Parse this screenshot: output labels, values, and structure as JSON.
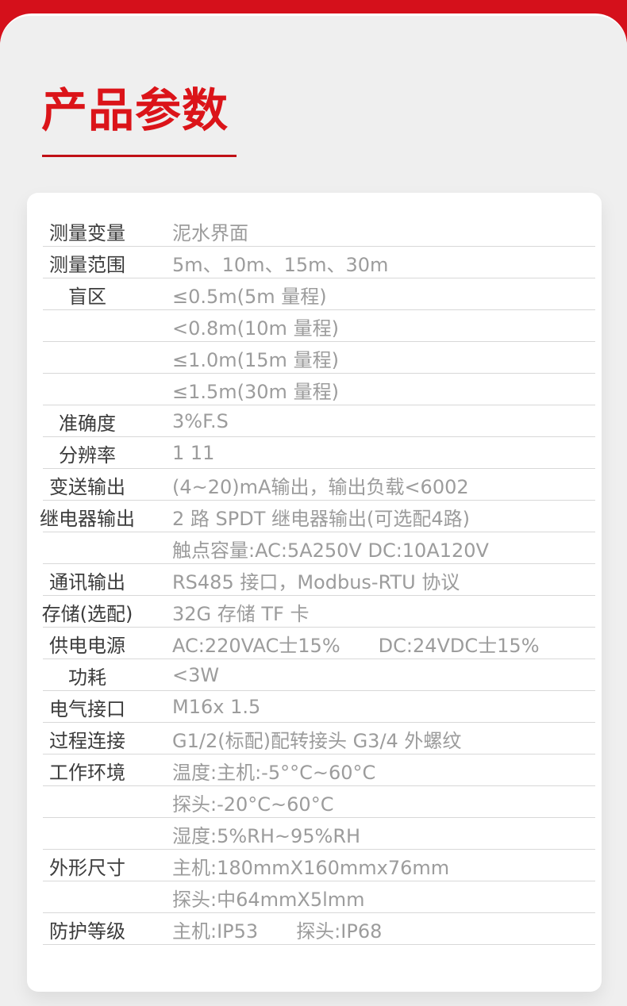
{
  "page": {
    "title": "产品参数"
  },
  "colors": {
    "top_bar_red": "#d5101b",
    "title_red": "#db1419",
    "underline_red": "#c01016",
    "sheet_gray": "#efefef",
    "card_white": "#ffffff",
    "separator_gray": "#d8d8d8",
    "label_text": "#3c3c3c",
    "value_text": "#9c9c9c"
  },
  "table": {
    "rows": [
      {
        "label": "测量变量",
        "value": "泥水界面"
      },
      {
        "label": "测量范围",
        "value": "5m、10m、15m、30m"
      },
      {
        "label": "盲区",
        "value": "≤0.5m(5m 量程)"
      },
      {
        "label": "",
        "value": "<0.8m(10m 量程)"
      },
      {
        "label": "",
        "value": "≤1.0m(15m 量程)"
      },
      {
        "label": "",
        "value": "≤1.5m(30m 量程)"
      },
      {
        "label": "准确度",
        "value": "3%F.S"
      },
      {
        "label": "分辨率",
        "value": "1 11"
      },
      {
        "label": "变送输出",
        "value": "(4~20)mA输出，输出负载<6002"
      },
      {
        "label": "继电器输出",
        "value": "2 路 SPDT 继电器输出(可选配4路)"
      },
      {
        "label": "",
        "value": "触点容量:AC:5A250V DC:10A120V"
      },
      {
        "label": "通讯输出",
        "value": "RS485 接口，Modbus-RTU 协议"
      },
      {
        "label": "存储(选配)",
        "value": "32G 存储 TF 卡"
      },
      {
        "label": "供电电源",
        "value": "AC:220VAC士15%",
        "value2": "DC:24VDC士15%"
      },
      {
        "label": "功耗",
        "value": "<3W"
      },
      {
        "label": "电气接口",
        "value": "M16x 1.5"
      },
      {
        "label": "过程连接",
        "value": "G1/2(标配)配转接头 G3/4 外螺纹"
      },
      {
        "label": "工作环境",
        "value": "温度:主机:-5°°C~60°C"
      },
      {
        "label": "",
        "value": "探头:-20°C~60°C"
      },
      {
        "label": "",
        "value": "湿度:5%RH~95%RH"
      },
      {
        "label": "外形尺寸",
        "value": "主机:180mmX160mmx76mm"
      },
      {
        "label": "",
        "value": "探头:中64mmX5lmm"
      },
      {
        "label": "防护等级",
        "value": "主机:IP53",
        "value2": "探头:IP68"
      }
    ]
  }
}
